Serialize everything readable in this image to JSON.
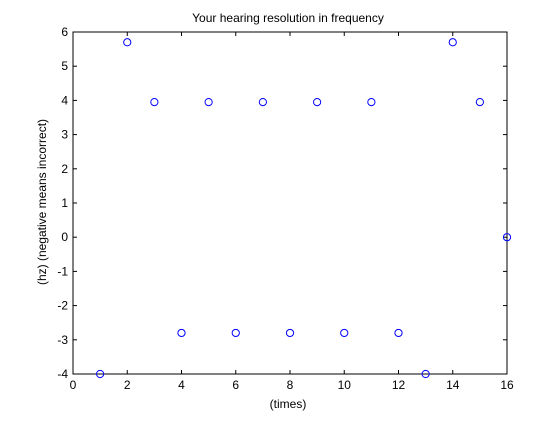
{
  "chart_data": {
    "type": "scatter",
    "title": "Your hearing resolution in frequency",
    "xlabel": "(times)",
    "ylabel": "(hz) (negative means incorrect)",
    "xlim": [
      0,
      16
    ],
    "ylim": [
      -4,
      6
    ],
    "xticks": [
      0,
      2,
      4,
      6,
      8,
      10,
      12,
      14,
      16
    ],
    "yticks": [
      -4,
      -3,
      -2,
      -1,
      0,
      1,
      2,
      3,
      4,
      5,
      6
    ],
    "grid": false,
    "marker": "circle-open",
    "marker_color": "#0000ff",
    "series": [
      {
        "x": [
          1,
          2,
          3,
          4,
          5,
          6,
          7,
          8,
          9,
          10,
          11,
          12,
          13,
          14,
          15,
          16
        ],
        "y": [
          -4,
          5.7,
          3.95,
          -2.8,
          3.95,
          -2.8,
          3.95,
          -2.8,
          3.95,
          -2.8,
          3.95,
          -2.8,
          -4,
          5.7,
          3.95,
          0
        ]
      }
    ]
  }
}
